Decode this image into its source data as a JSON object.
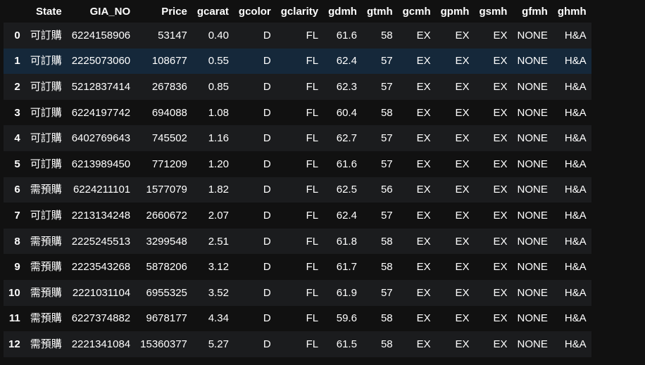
{
  "table": {
    "columns": [
      "State",
      "GIA_NO",
      "Price",
      "gcarat",
      "gcolor",
      "gclarity",
      "gdmh",
      "gtmh",
      "gcmh",
      "gpmh",
      "gsmh",
      "gfmh",
      "ghmh"
    ],
    "rows": [
      {
        "index": "0",
        "cells": [
          "可訂購",
          "6224158906",
          "53147",
          "0.40",
          "D",
          "FL",
          "61.6",
          "58",
          "EX",
          "EX",
          "EX",
          "NONE",
          "H&A"
        ]
      },
      {
        "index": "1",
        "cells": [
          "可訂購",
          "2225073060",
          "108677",
          "0.55",
          "D",
          "FL",
          "62.4",
          "57",
          "EX",
          "EX",
          "EX",
          "NONE",
          "H&A"
        ]
      },
      {
        "index": "2",
        "cells": [
          "可訂購",
          "5212837414",
          "267836",
          "0.85",
          "D",
          "FL",
          "62.3",
          "57",
          "EX",
          "EX",
          "EX",
          "NONE",
          "H&A"
        ]
      },
      {
        "index": "3",
        "cells": [
          "可訂購",
          "6224197742",
          "694088",
          "1.08",
          "D",
          "FL",
          "60.4",
          "58",
          "EX",
          "EX",
          "EX",
          "NONE",
          "H&A"
        ]
      },
      {
        "index": "4",
        "cells": [
          "可訂購",
          "6402769643",
          "745502",
          "1.16",
          "D",
          "FL",
          "62.7",
          "57",
          "EX",
          "EX",
          "EX",
          "NONE",
          "H&A"
        ]
      },
      {
        "index": "5",
        "cells": [
          "可訂購",
          "6213989450",
          "771209",
          "1.20",
          "D",
          "FL",
          "61.6",
          "57",
          "EX",
          "EX",
          "EX",
          "NONE",
          "H&A"
        ]
      },
      {
        "index": "6",
        "cells": [
          "需預購",
          "6224211101",
          "1577079",
          "1.82",
          "D",
          "FL",
          "62.5",
          "56",
          "EX",
          "EX",
          "EX",
          "NONE",
          "H&A"
        ]
      },
      {
        "index": "7",
        "cells": [
          "可訂購",
          "2213134248",
          "2660672",
          "2.07",
          "D",
          "FL",
          "62.4",
          "57",
          "EX",
          "EX",
          "EX",
          "NONE",
          "H&A"
        ]
      },
      {
        "index": "8",
        "cells": [
          "需預購",
          "2225245513",
          "3299548",
          "2.51",
          "D",
          "FL",
          "61.8",
          "58",
          "EX",
          "EX",
          "EX",
          "NONE",
          "H&A"
        ]
      },
      {
        "index": "9",
        "cells": [
          "需預購",
          "2223543268",
          "5878206",
          "3.12",
          "D",
          "FL",
          "61.7",
          "58",
          "EX",
          "EX",
          "EX",
          "NONE",
          "H&A"
        ]
      },
      {
        "index": "10",
        "cells": [
          "需預購",
          "2221031104",
          "6955325",
          "3.52",
          "D",
          "FL",
          "61.9",
          "57",
          "EX",
          "EX",
          "EX",
          "NONE",
          "H&A"
        ]
      },
      {
        "index": "11",
        "cells": [
          "需預購",
          "6227374882",
          "9678177",
          "4.34",
          "D",
          "FL",
          "59.6",
          "58",
          "EX",
          "EX",
          "EX",
          "NONE",
          "H&A"
        ]
      },
      {
        "index": "12",
        "cells": [
          "需預購",
          "2221341084",
          "15360377",
          "5.27",
          "D",
          "FL",
          "61.5",
          "58",
          "EX",
          "EX",
          "EX",
          "NONE",
          "H&A"
        ]
      }
    ]
  },
  "colors": {
    "background": "#111111",
    "row_stripe": "#1b1c1e",
    "row_hover": "#15283a",
    "text": "#ffffff"
  }
}
